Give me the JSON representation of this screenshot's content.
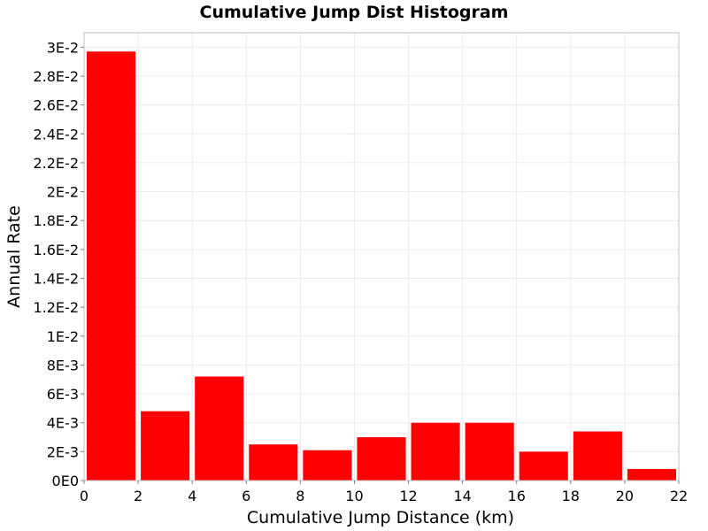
{
  "chart_data": {
    "type": "bar",
    "title": "Cumulative Jump Dist Histogram",
    "xlabel": "Cumulative Jump Distance (km)",
    "ylabel": "Annual Rate",
    "xlim": [
      0,
      22
    ],
    "ylim": [
      0,
      0.031
    ],
    "x_ticks": [
      0,
      2,
      4,
      6,
      8,
      10,
      12,
      14,
      16,
      18,
      20,
      22
    ],
    "x_tick_labels": [
      "0",
      "2",
      "4",
      "6",
      "8",
      "10",
      "12",
      "14",
      "16",
      "18",
      "20",
      "22"
    ],
    "y_ticks": [
      0,
      0.002,
      0.004,
      0.006,
      0.008,
      0.01,
      0.012,
      0.014,
      0.016,
      0.018,
      0.02,
      0.022,
      0.024,
      0.026,
      0.028,
      0.03
    ],
    "y_tick_labels": [
      "0E0",
      "2E-3",
      "4E-3",
      "6E-3",
      "8E-3",
      "1E-2",
      "1.2E-2",
      "1.4E-2",
      "1.6E-2",
      "1.8E-2",
      "2E-2",
      "2.2E-2",
      "2.4E-2",
      "2.6E-2",
      "2.8E-2",
      "3E-2"
    ],
    "bin_width": 2,
    "bin_centers": [
      1,
      3,
      5,
      7,
      9,
      11,
      13,
      15,
      17,
      19,
      21
    ],
    "values": [
      0.0297,
      0.0048,
      0.0072,
      0.0025,
      0.0021,
      0.003,
      0.004,
      0.004,
      0.002,
      0.0034,
      0.0008
    ],
    "bar_color": "#ff0000",
    "grid": true,
    "grid_color": "#ececec",
    "background": "#ffffff",
    "plot_border_color": "#c0c0c0"
  }
}
